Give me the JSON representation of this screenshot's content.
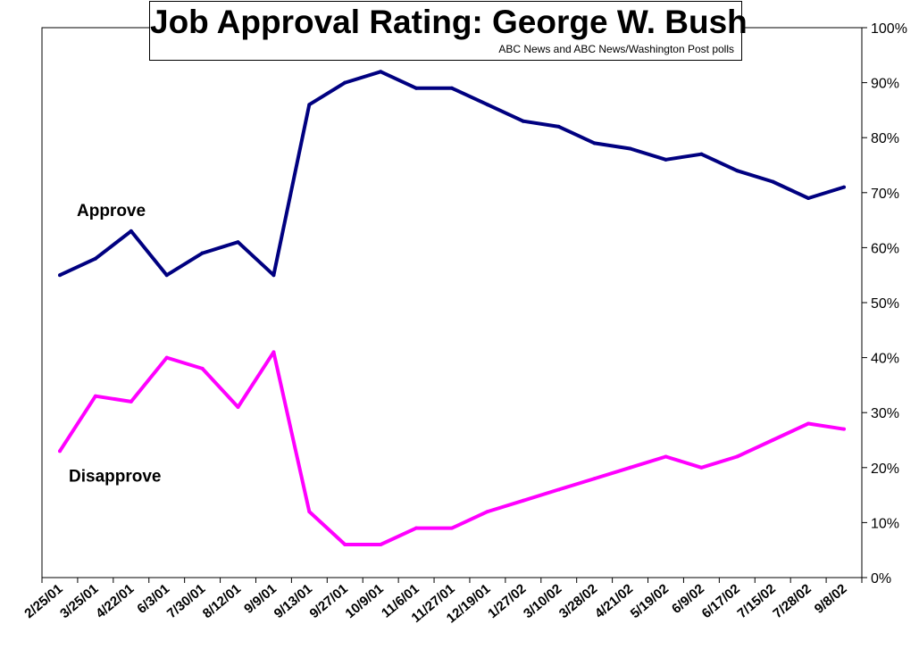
{
  "chart_data": {
    "type": "line",
    "title": "Job Approval Rating: George W. Bush",
    "subtitle": "ABC News and ABC News/Washington Post polls",
    "categories": [
      "2/25/01",
      "3/25/01",
      "4/22/01",
      "6/3/01",
      "7/30/01",
      "8/12/01",
      "9/9/01",
      "9/13/01",
      "9/27/01",
      "10/9/01",
      "11/6/01",
      "11/27/01",
      "12/19/01",
      "1/27/02",
      "3/10/02",
      "3/28/02",
      "4/21/02",
      "5/19/02",
      "6/9/02",
      "6/17/02",
      "7/15/02",
      "7/28/02",
      "9/8/02"
    ],
    "series": [
      {
        "name": "Approve",
        "color": "#000080",
        "values": [
          55,
          58,
          63,
          55,
          59,
          61,
          55,
          86,
          90,
          92,
          89,
          89,
          86,
          83,
          82,
          79,
          78,
          76,
          77,
          74,
          72,
          69,
          71
        ]
      },
      {
        "name": "Disapprove",
        "color": "#FF00FF",
        "values": [
          23,
          33,
          32,
          40,
          38,
          31,
          41,
          12,
          6,
          6,
          9,
          9,
          12,
          14,
          16,
          18,
          20,
          22,
          20,
          22,
          25,
          28,
          27
        ]
      }
    ],
    "yaxis": {
      "position": "right",
      "min": 0,
      "max": 100,
      "step": 10,
      "format": "percent",
      "tick_labels": [
        "0%",
        "10%",
        "20%",
        "30%",
        "40%",
        "50%",
        "60%",
        "70%",
        "80%",
        "90%",
        "100%"
      ]
    },
    "xlabel": "",
    "ylabel": "",
    "grid": false,
    "legend": "inline labels"
  }
}
